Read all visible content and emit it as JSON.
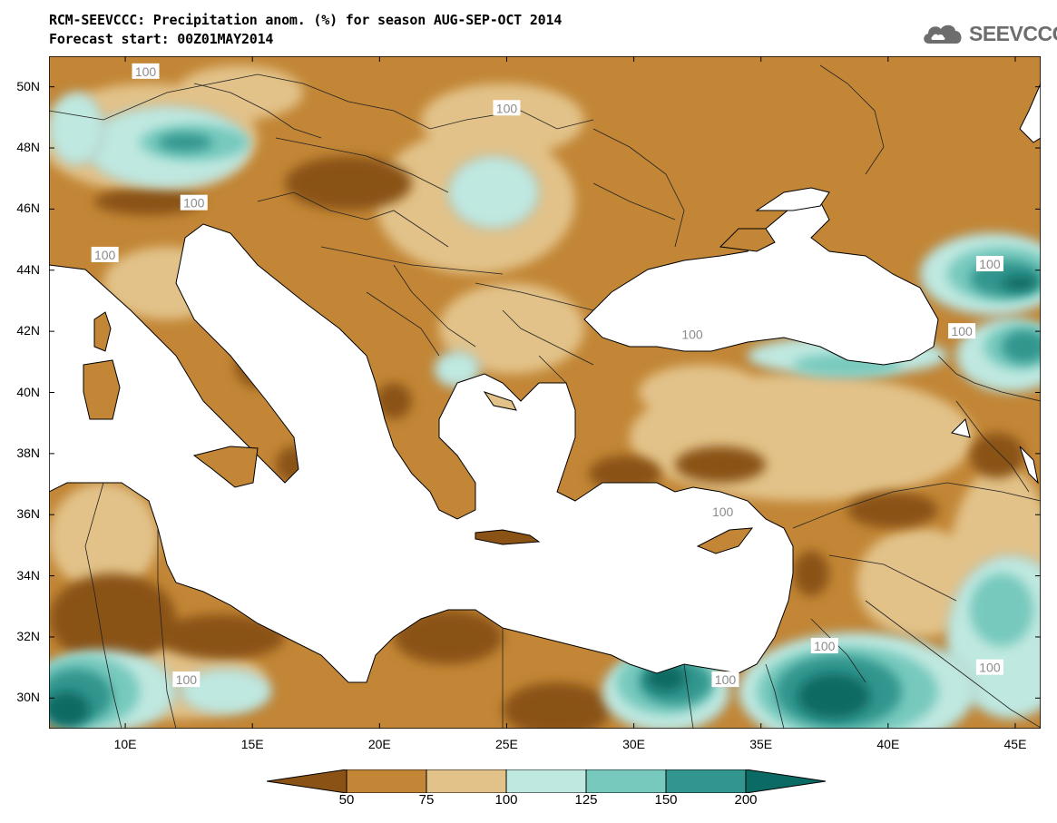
{
  "title": {
    "line1": "RCM-SEEVCCC: Precipitation anom. (%) for season AUG-SEP-OCT 2014",
    "line2": "Forecast start: 00Z01MAY2014"
  },
  "logo": {
    "text": "SEEVCCC",
    "icon": "cloud-icon",
    "color": "#6d6d6d"
  },
  "map": {
    "lat_range": [
      29,
      51
    ],
    "lon_range": [
      7,
      46
    ],
    "lat_ticks": [
      {
        "value": 30,
        "label": "30N"
      },
      {
        "value": 32,
        "label": "32N"
      },
      {
        "value": 34,
        "label": "34N"
      },
      {
        "value": 36,
        "label": "36N"
      },
      {
        "value": 38,
        "label": "38N"
      },
      {
        "value": 40,
        "label": "40N"
      },
      {
        "value": 42,
        "label": "42N"
      },
      {
        "value": 44,
        "label": "44N"
      },
      {
        "value": 46,
        "label": "46N"
      },
      {
        "value": 48,
        "label": "48N"
      },
      {
        "value": 50,
        "label": "50N"
      }
    ],
    "lon_ticks": [
      {
        "value": 10,
        "label": "10E"
      },
      {
        "value": 15,
        "label": "15E"
      },
      {
        "value": 20,
        "label": "20E"
      },
      {
        "value": 25,
        "label": "25E"
      },
      {
        "value": 30,
        "label": "30E"
      },
      {
        "value": 35,
        "label": "35E"
      },
      {
        "value": 40,
        "label": "40E"
      },
      {
        "value": 45,
        "label": "45E"
      }
    ],
    "contour_labels": [
      {
        "text": "100",
        "lon": 10.8,
        "lat": 50.5
      },
      {
        "text": "100",
        "lon": 25.0,
        "lat": 49.3
      },
      {
        "text": "100",
        "lon": 12.7,
        "lat": 46.2
      },
      {
        "text": "100",
        "lon": 9.2,
        "lat": 44.5
      },
      {
        "text": "100",
        "lon": 44.0,
        "lat": 44.2
      },
      {
        "text": "100",
        "lon": 32.3,
        "lat": 41.9
      },
      {
        "text": "100",
        "lon": 42.9,
        "lat": 42.0
      },
      {
        "text": "100",
        "lon": 33.5,
        "lat": 36.1
      },
      {
        "text": "100",
        "lon": 37.5,
        "lat": 31.7
      },
      {
        "text": "100",
        "lon": 12.4,
        "lat": 30.6
      },
      {
        "text": "100",
        "lon": 33.6,
        "lat": 30.6
      },
      {
        "text": "100",
        "lon": 44.0,
        "lat": 31.0
      }
    ]
  },
  "colors": {
    "lt50": "#8a5214",
    "c50_75": "#c28636",
    "c75_100": "#e2c289",
    "c100_125": "#bfe8e0",
    "c125_150": "#77c9bd",
    "c150_200": "#33968e",
    "gt200": "#0b6a63",
    "sea": "#ffffff"
  },
  "colorbar": {
    "ticks": [
      "50",
      "75",
      "100",
      "125",
      "150",
      "200"
    ]
  }
}
